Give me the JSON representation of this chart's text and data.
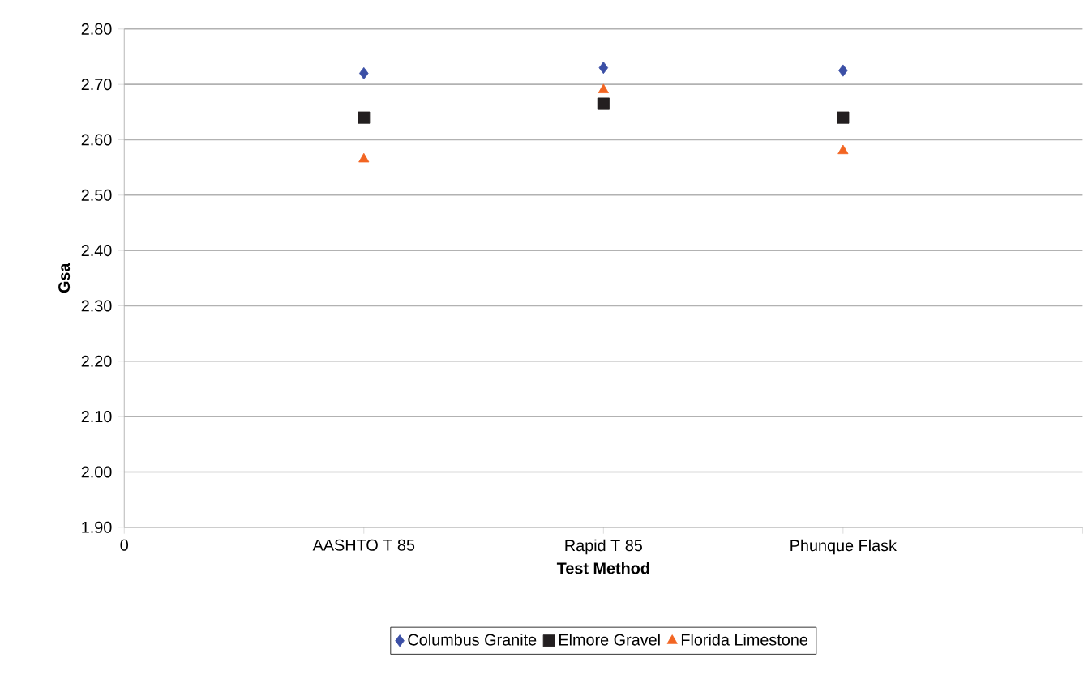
{
  "chart_data": {
    "type": "scatter",
    "xlabel": "Test Method",
    "ylabel": "Gsa",
    "categories": [
      "0",
      "AASHTO T 85",
      "Rapid T 85",
      "Phunque Flask",
      null
    ],
    "series": [
      {
        "name": "Columbus Granite",
        "color": "#3b4fa6",
        "marker": "diamond",
        "values": [
          null,
          2.72,
          2.73,
          2.725,
          null
        ]
      },
      {
        "name": "Elmore Gravel",
        "color": "#231f20",
        "marker": "square",
        "values": [
          null,
          2.64,
          2.665,
          2.64,
          null
        ]
      },
      {
        "name": "Florida Limestone",
        "color": "#f26522",
        "marker": "triangle",
        "values": [
          null,
          2.565,
          2.69,
          2.58,
          null
        ]
      }
    ],
    "ylim": [
      1.9,
      2.8
    ],
    "yticks": [
      {
        "value": 1.9,
        "label": "1.90"
      },
      {
        "value": 2.0,
        "label": "2.00"
      },
      {
        "value": 2.1,
        "label": "2.10"
      },
      {
        "value": 2.2,
        "label": "2.20"
      },
      {
        "value": 2.3,
        "label": "2.30"
      },
      {
        "value": 2.4,
        "label": "2.40"
      },
      {
        "value": 2.5,
        "label": "2.50"
      },
      {
        "value": 2.6,
        "label": "2.60"
      },
      {
        "value": 2.7,
        "label": "2.70"
      },
      {
        "value": 2.8,
        "label": "2.80"
      }
    ],
    "grid": "y",
    "legend": "bottom"
  }
}
